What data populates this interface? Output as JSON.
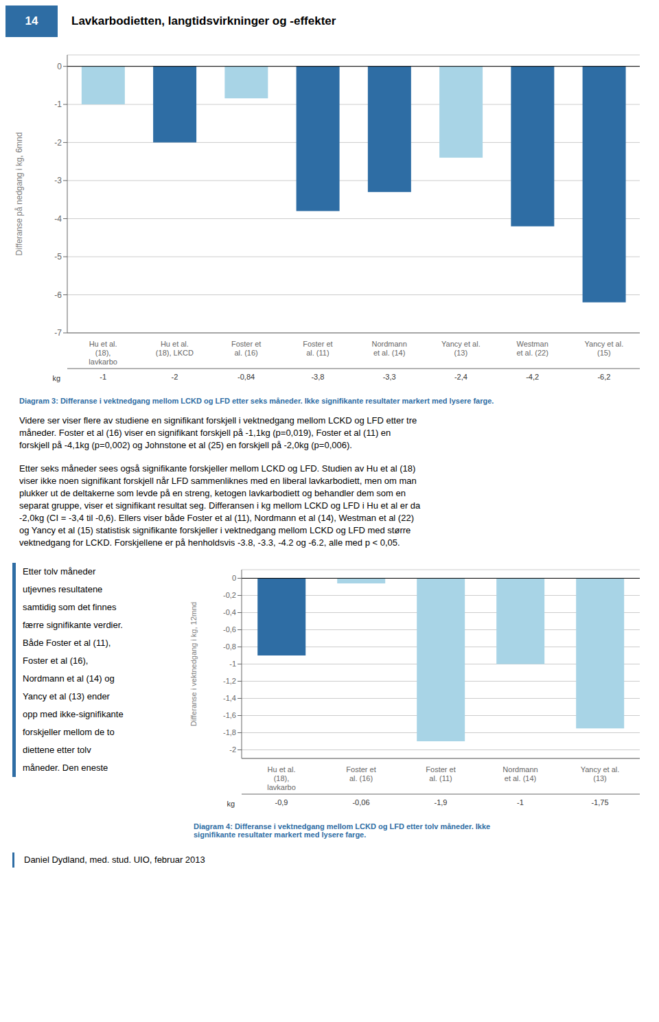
{
  "annotations": [
    "14",
    "Lavkarbodietten, langtidsvirkninger og -effekter",
    "Videre ser viser flere av studiene en signifikant forskjell i vektnedgang mellom LCKD og LFD etter tre\nmåneder. Foster et al (16) viser en signifikant forskjell på -1,1kg (p=0,019), Foster et al (11) en\nforskjell på -4,1kg (p=0,002) og Johnstone et al (25) en forskjell på -2,0kg (p=0,006).",
    "Etter seks måneder sees også signifikante forskjeller mellom LCKD og LFD. Studien av Hu et al (18)\nviser ikke noen signifikant forskjell når LFD sammenliknes med en liberal lavkarbodiett, men om man\nplukker ut de deltakerne som levde på en streng, ketogen lavkarbodiett og behandler dem som en\nseparat gruppe, viser et signifikant resultat seg. Differansen i kg mellom LCKD og LFD i Hu et al er da\n-2,0kg (CI = -3,4 til -0,6). Ellers viser både Foster et al (11), Nordmann et al (14), Westman et al (22)\nog Yancy et al (15) statistisk signifikante forskjeller i vektnedgang mellom LCKD og LFD med større\nvektnedgang for LCKD. Forskjellene er på henholdsvis -3.8, -3.3, -4.2 og -6.2, alle med p < 0,05.",
    "Etter tolv måneder\nutjevnes resultatene\nsamtidig som det finnes\nfærre signifikante verdier.\nBåde Foster et al (11),\nFoster et al (16),\nNordmann et al (14) og\nYancy et al (13) ender\nopp med ikke-signifikante\nforskjeller mellom de to\ndiettene etter tolv\nmåneder. Den eneste",
    "Daniel Dydland, med. stud. UIO, februar 2013"
  ],
  "chart_data": [
    {
      "type": "bar",
      "title": "Diagram 3: Differanse i vektnedgang mellom LCKD og LFD etter seks måneder. Ikke signifikante resultater markert med lysere farge.",
      "ylabel": "Differanse på nedgang i kg, 6mnd",
      "categories": [
        "Hu et al.\n(18),\nlavkarbo",
        "Hu et al.\n(18), LKCD",
        "Foster et\nal. (16)",
        "Foster et\nal. (11)",
        "Nordmann\net al. (14)",
        "Yancy et al.\n(13)",
        "Westman\net al. (22)",
        "Yancy et al.\n(15)"
      ],
      "values": [
        -1,
        -2,
        -0.84,
        -3.8,
        -3.3,
        -2.4,
        -4.2,
        -6.2
      ],
      "value_labels": [
        "-1",
        "-2",
        "-0,84",
        "-3,8",
        "-3,3",
        "-2,4",
        "-4,2",
        "-6,2"
      ],
      "data_labels": true,
      "colors": [
        "#a8d4e6",
        "#2e6da4",
        "#a8d4e6",
        "#2e6da4",
        "#2e6da4",
        "#a8d4e6",
        "#2e6da4",
        "#2e6da4"
      ],
      "ylim": [
        -7,
        0.3
      ],
      "yticks": [
        0,
        -1,
        -2,
        -3,
        -4,
        -5,
        -6,
        -7
      ],
      "grid": true,
      "annotations": [
        "kg"
      ]
    },
    {
      "type": "bar",
      "title": "Diagram 4: Differanse i vektnedgang mellom LCKD og LFD etter tolv måneder. Ikke\nsignifikante resultater markert med lysere farge.",
      "ylabel": "Differanse i vektnedgang i kg, 12mnd",
      "categories": [
        "Hu et al.\n(18),\nlavkarbo",
        "Foster et\nal. (16)",
        "Foster et\nal. (11)",
        "Nordmann\net al. (14)",
        "Yancy et al.\n(13)"
      ],
      "values": [
        -0.9,
        -0.06,
        -1.9,
        -1.0,
        -1.75
      ],
      "value_labels": [
        "-0,9",
        "-0,06",
        "-1,9",
        "-1",
        "-1,75"
      ],
      "data_labels": true,
      "colors": [
        "#2e6da4",
        "#a8d4e6",
        "#a8d4e6",
        "#a8d4e6",
        "#a8d4e6"
      ],
      "ylim": [
        -2.1,
        0.1
      ],
      "yticks": [
        0,
        {
          "value": -0.2,
          "label": "-0,2"
        },
        {
          "value": -0.4,
          "label": "-0,4"
        },
        {
          "value": -0.6,
          "label": "-0,6"
        },
        {
          "value": -0.8,
          "label": "-0,8"
        },
        {
          "value": -1.0,
          "label": "-1"
        },
        {
          "value": -1.2,
          "label": "-1,2"
        },
        {
          "value": -1.4,
          "label": "-1,4"
        },
        {
          "value": -1.6,
          "label": "-1,6"
        },
        {
          "value": -1.8,
          "label": "-1,8"
        },
        {
          "value": -2.0,
          "label": "-2"
        }
      ],
      "grid": true,
      "annotations": [
        "kg"
      ]
    }
  ]
}
